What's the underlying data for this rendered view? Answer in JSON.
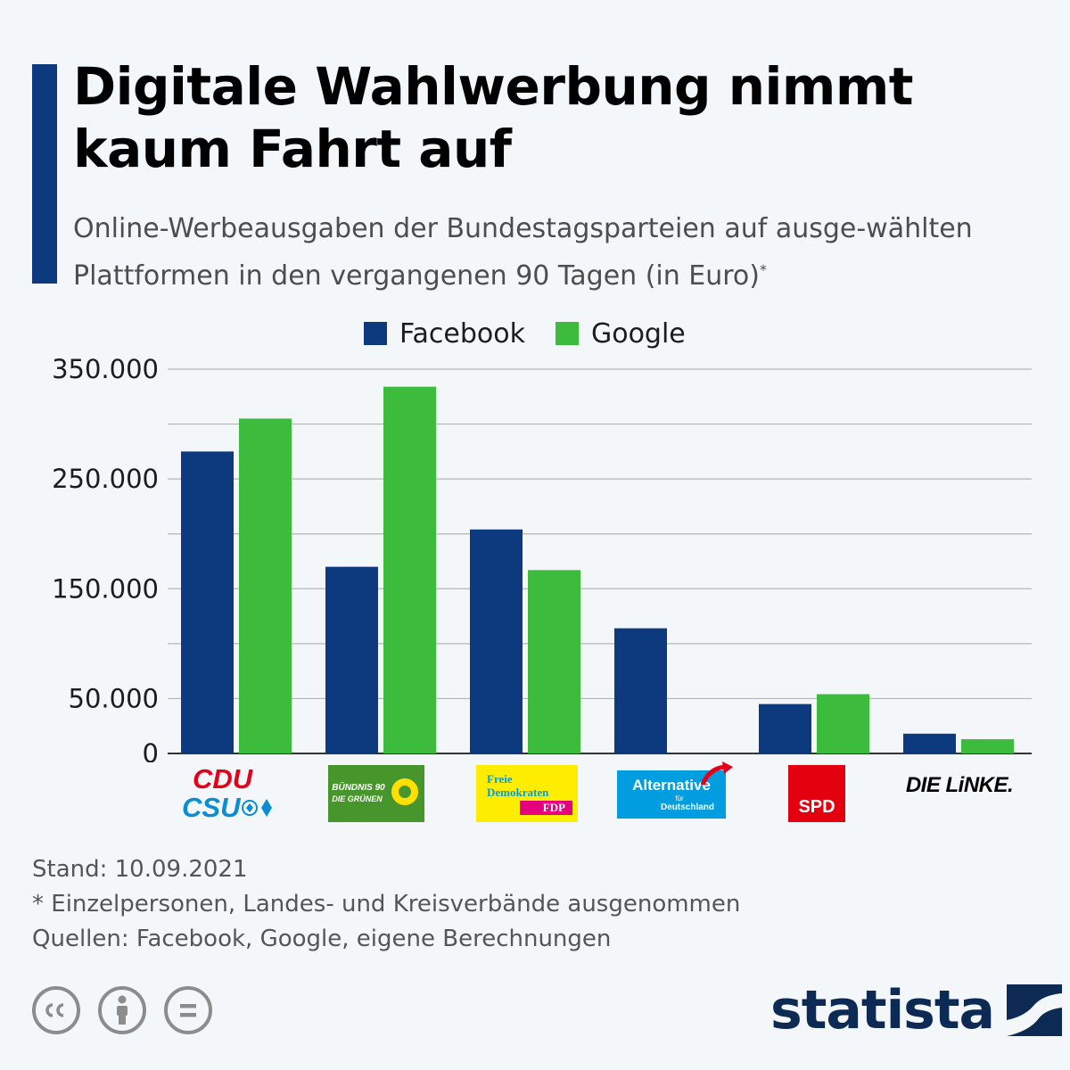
{
  "title": "Digitale Wahlwerbung nimmt kaum Fahrt auf",
  "subtitle": "Online-Werbeausgaben der Bundestagsparteien auf ausge-wählten Plattformen in den vergangenen 90 Tagen (in Euro)",
  "subtitle_mark": "*",
  "colors": {
    "facebook": "#0d3a7e",
    "google": "#3dbb3c",
    "accent": "#0d3a7e"
  },
  "chart_data": {
    "type": "bar",
    "title": "Digitale Wahlwerbung nimmt kaum Fahrt auf",
    "ylabel": "Euro",
    "ylim": [
      0,
      350000
    ],
    "yticks": [
      "350.000",
      "250.000",
      "150.000",
      "50.000",
      "0"
    ],
    "ytick_values": [
      350000,
      250000,
      150000,
      50000,
      0
    ],
    "gridlines": [
      0,
      50000,
      100000,
      150000,
      200000,
      250000,
      300000,
      350000
    ],
    "categories": [
      "CDU/CSU",
      "Bündnis 90 / Die Grünen",
      "FDP",
      "AfD",
      "SPD",
      "Die Linke"
    ],
    "series": [
      {
        "name": "Facebook",
        "values": [
          275000,
          170000,
          204000,
          114000,
          45000,
          18000
        ]
      },
      {
        "name": "Google",
        "values": [
          305000,
          334000,
          167000,
          0,
          54000,
          13000
        ]
      }
    ]
  },
  "logos": {
    "cdu": "CDU",
    "csu": "CSU",
    "gruene_1": "BÜNDNIS 90",
    "gruene_2": "DIE GRÜNEN",
    "fdp_1": "Freie",
    "fdp_2": "Demokraten",
    "fdp_3": "FDP",
    "afd_1": "Alternative",
    "afd_2": "für",
    "afd_3": "Deutschland",
    "spd": "SPD",
    "linke": "DIE LiNKE."
  },
  "footer": {
    "stand": "Stand: 10.09.2021",
    "note": "* Einzelpersonen, Landes- und Kreisverbände ausgenommen",
    "sources": "Quellen: Facebook, Google, eigene Berechnungen"
  },
  "brand": "statista"
}
